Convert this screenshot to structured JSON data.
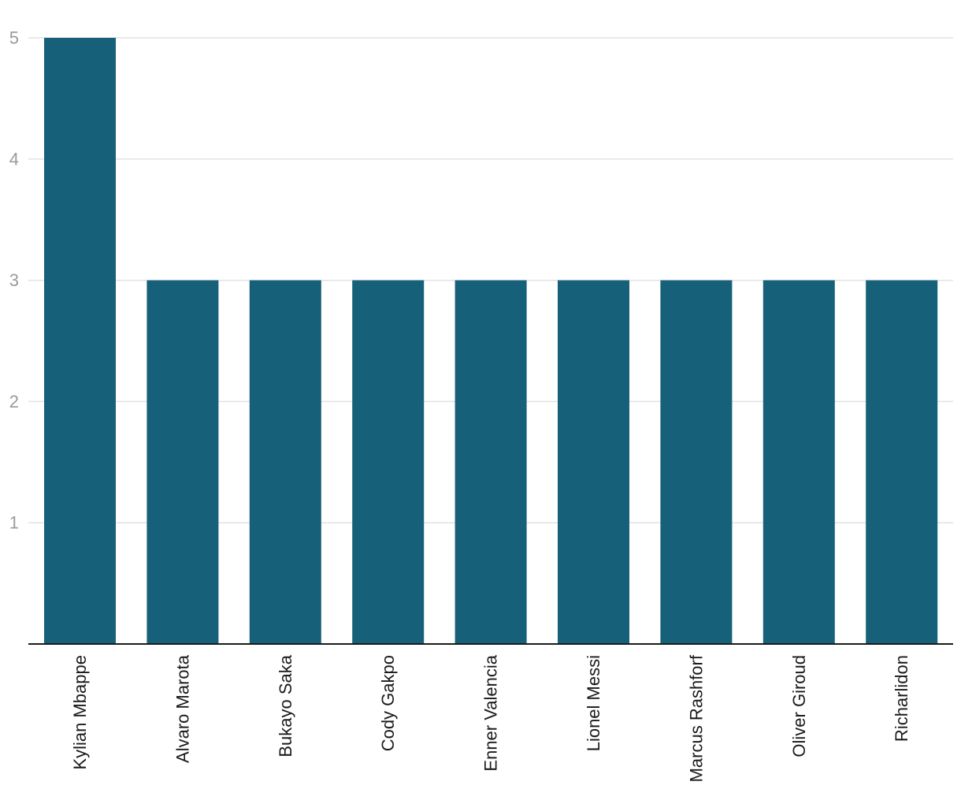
{
  "chart_data": {
    "type": "bar",
    "categories": [
      "Kylian Mbappe",
      "Alvaro Marota",
      "Bukayo Saka",
      "Cody Gakpo",
      "Enner Valencia",
      "Lionel Messi",
      "Marcus Rashforf",
      "Oliver Giroud",
      "Richarlidon"
    ],
    "values": [
      5,
      3,
      3,
      3,
      3,
      3,
      3,
      3,
      3
    ],
    "ylim": [
      0,
      5
    ],
    "yticks": [
      1,
      2,
      3,
      4,
      5
    ],
    "grid": true,
    "bar_color": "#17607a",
    "title": "",
    "xlabel": "",
    "ylabel": ""
  }
}
